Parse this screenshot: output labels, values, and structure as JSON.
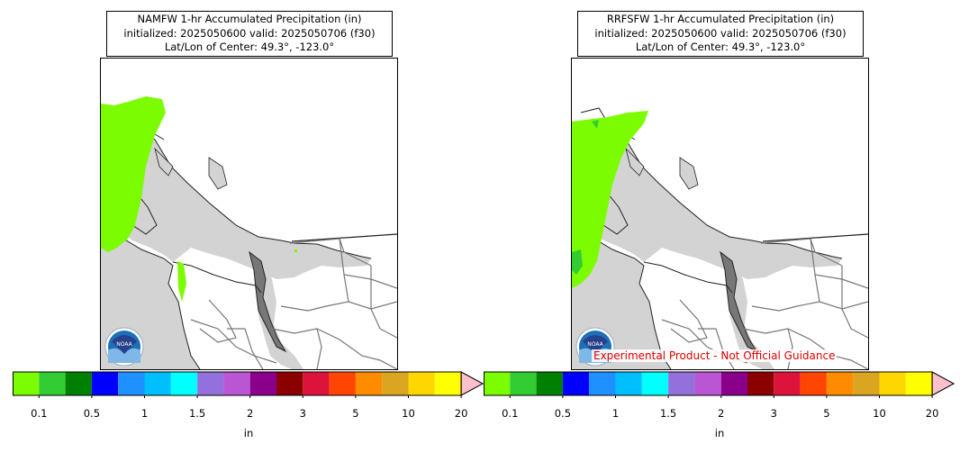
{
  "panels": [
    {
      "title_line1": "NAMFW 1-hr Accumulated Precipitation (in)",
      "title_line2": "initialized: 2025050600 valid: 2025050706 (f30)",
      "title_line3": "Lat/Lon of Center: 49.3°, -123.0°",
      "logo_text": "NOAA",
      "watermark": ""
    },
    {
      "title_line1": "RRFSFW 1-hr Accumulated Precipitation (in)",
      "title_line2": "initialized: 2025050600 valid: 2025050706 (f30)",
      "title_line3": "Lat/Lon of Center: 49.3°, -123.0°",
      "logo_text": "NOAA",
      "watermark": "Experimental Product - Not Official Guidance"
    }
  ],
  "colorbar": {
    "colors": [
      "#7cfc00",
      "#32cd32",
      "#008000",
      "#0000ff",
      "#1e90ff",
      "#00bfff",
      "#00ffff",
      "#9370db",
      "#ba55d3",
      "#8b008b",
      "#8b0000",
      "#dc143c",
      "#ff4500",
      "#ff8c00",
      "#daa520",
      "#ffd700",
      "#ffff00"
    ],
    "extend_color": "#ffc0cb",
    "ticks": [
      "0.1",
      "0.5",
      "1",
      "1.5",
      "2",
      "3",
      "5",
      "10",
      "20"
    ],
    "unit": "in"
  },
  "map_colors": {
    "water": "#d3d3d3",
    "land": "#ffffff",
    "coast": "#222222",
    "border": "#777777",
    "precip": "#7cfc00",
    "precip2": "#32cd32"
  }
}
